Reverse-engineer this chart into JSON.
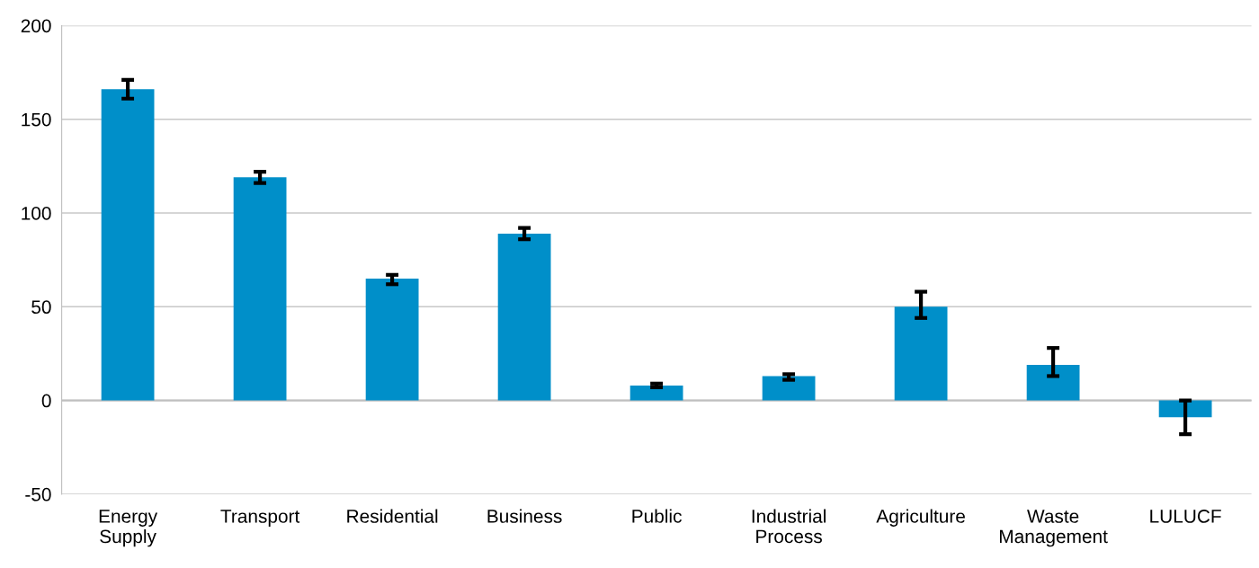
{
  "chart_data": {
    "type": "bar",
    "categories": [
      "Energy Supply",
      "Transport",
      "Residential",
      "Business",
      "Public",
      "Industrial Process",
      "Agriculture",
      "Waste Management",
      "LULUCF"
    ],
    "values": [
      166,
      119,
      65,
      89,
      8,
      13,
      50,
      19,
      -9
    ],
    "errors": [
      [
        161,
        171
      ],
      [
        116,
        122
      ],
      [
        62,
        67
      ],
      [
        86,
        92
      ],
      [
        7,
        9
      ],
      [
        11,
        14
      ],
      [
        44,
        58
      ],
      [
        13,
        28
      ],
      [
        -18,
        0
      ]
    ],
    "color": "#008fc9",
    "ylim": [
      -50,
      200
    ],
    "yticks": [
      -50,
      0,
      50,
      100,
      150,
      200
    ],
    "grid": "y"
  }
}
